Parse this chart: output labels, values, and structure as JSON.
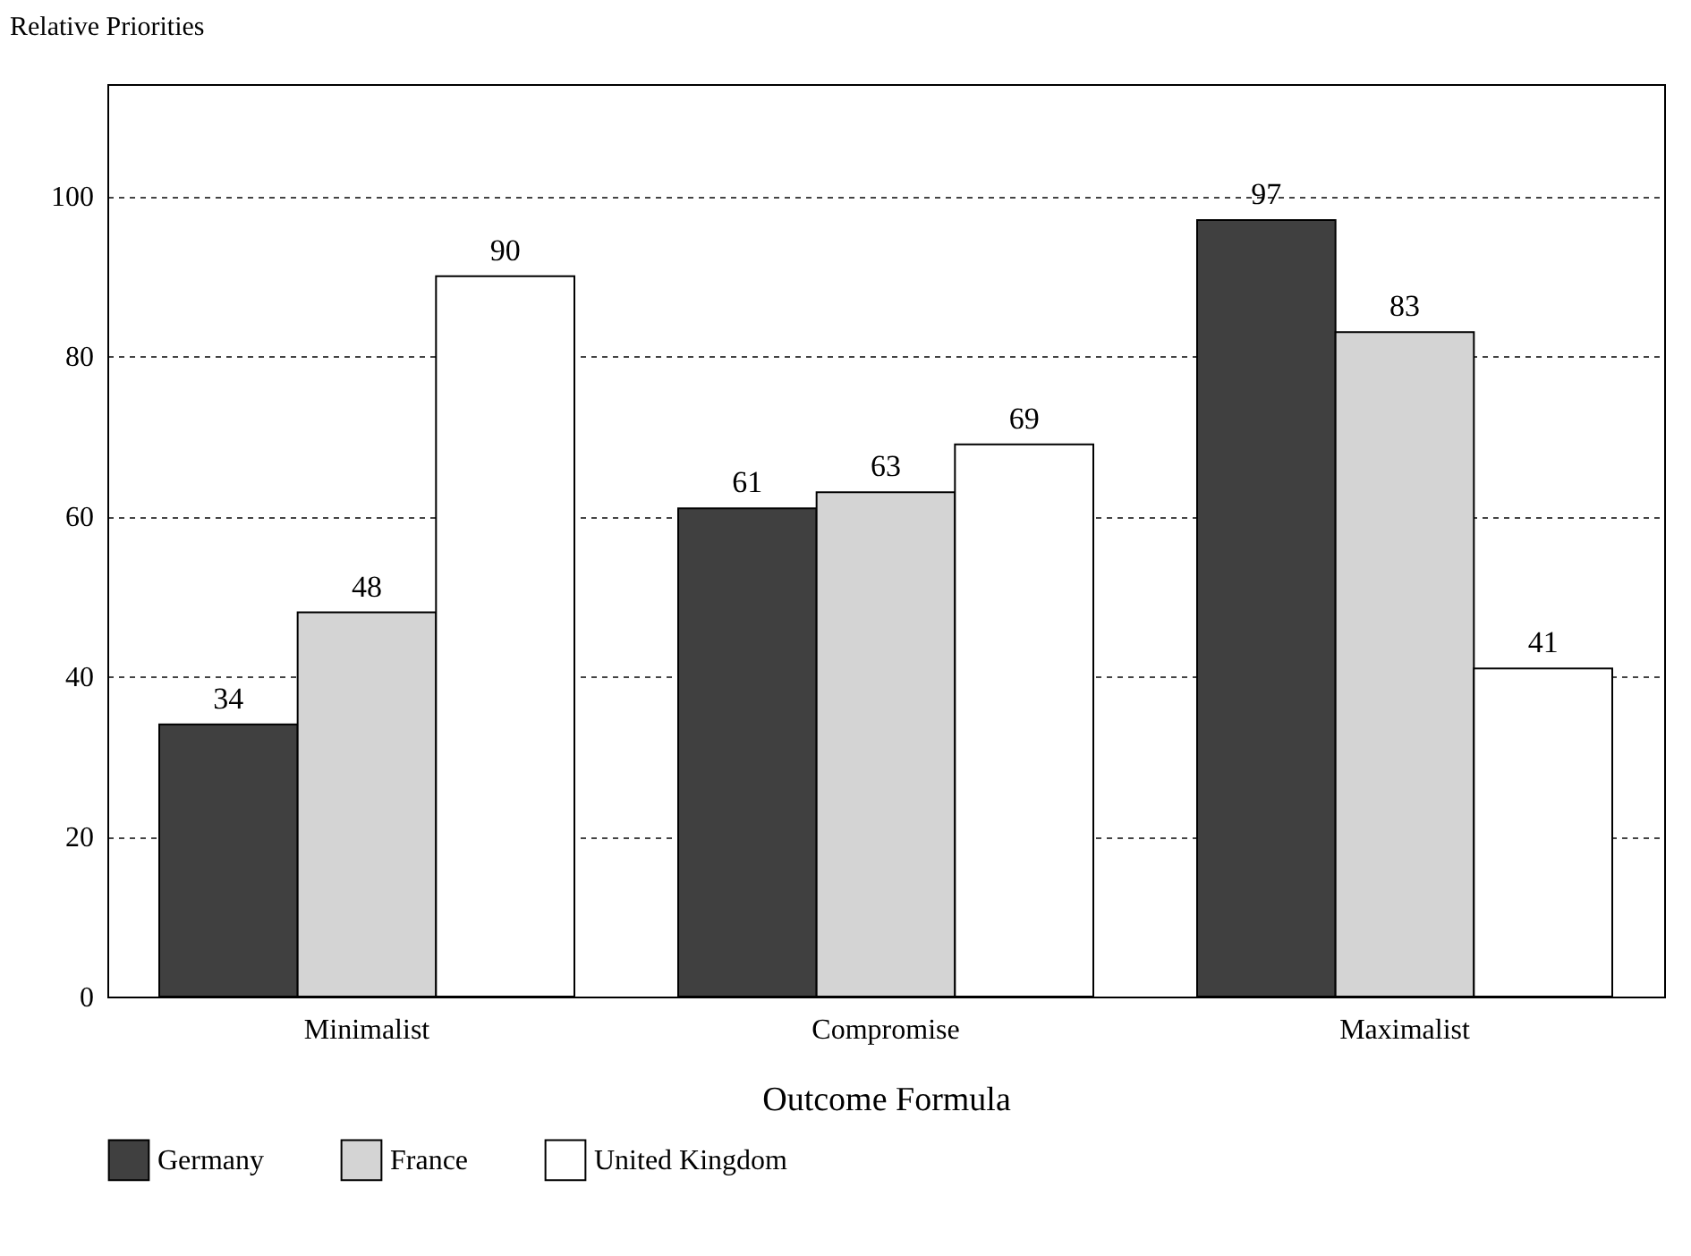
{
  "chart_data": {
    "type": "bar",
    "ylabel": "Relative Priorities",
    "xlabel": "Outcome Formula",
    "categories": [
      "Minimalist",
      "Compromise",
      "Maximalist"
    ],
    "series": [
      {
        "name": "Germany",
        "color": "#404040",
        "values": [
          34,
          61,
          97
        ]
      },
      {
        "name": "France",
        "color": "#d4d4d4",
        "values": [
          48,
          63,
          83
        ]
      },
      {
        "name": "United Kingdom",
        "color": "#ffffff",
        "values": [
          90,
          69,
          41
        ]
      }
    ],
    "ylim": [
      0,
      114
    ],
    "yticks": [
      0,
      20,
      40,
      60,
      80,
      100
    ],
    "grid": "y",
    "legend": "bottom",
    "data_labels": true
  }
}
